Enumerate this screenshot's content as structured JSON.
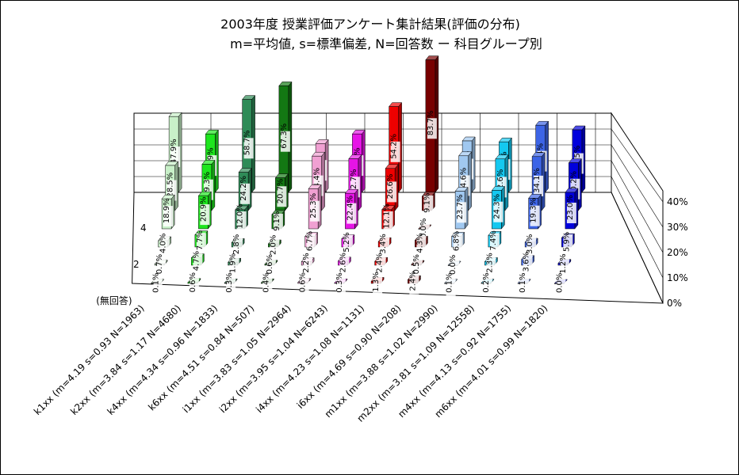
{
  "chart_data": {
    "type": "bar",
    "title": "2003年度 授業評価アンケート集計結果(評価の分布)",
    "subtitle": "m=平均値, s=標準偏差, N=回答数 ー 科目グループ別",
    "series_labels": [
      "(無回答)",
      "",
      "2",
      "",
      "4",
      ""
    ],
    "vertical_ticks": [
      "0%",
      "10%",
      "20%",
      "30%",
      "40%"
    ],
    "ylim": [
      0,
      50
    ],
    "categories": [
      {
        "name": "k1xx (m=4.19 s=0.93 N=1963)",
        "values": [
          0.1,
          0.7,
          4.0,
          18.9,
          28.5,
          47.9
        ],
        "color": "#c8f0c8"
      },
      {
        "name": "k2xx (m=3.84 s=1.17 N=4680)",
        "values": [
          0.6,
          4.7,
          7.7,
          20.9,
          29.3,
          36.9
        ],
        "color": "#1ee61e"
      },
      {
        "name": "k4xx (m=4.34 s=0.96 N=1833)",
        "values": [
          0.3,
          1.9,
          2.8,
          12.0,
          24.2,
          58.7
        ],
        "color": "#2e8b57"
      },
      {
        "name": "k6xx (m=4.51 s=0.84 N=507)",
        "values": [
          0.4,
          0.6,
          2.0,
          9.1,
          20.7,
          67.3
        ],
        "color": "#137813"
      },
      {
        "name": "i1xx (m=3.83 s=1.05 N=2964)",
        "values": [
          0.6,
          2.2,
          6.7,
          25.3,
          34.4,
          30.8
        ],
        "color": "#f0a0d2"
      },
      {
        "name": "i2xx (m=3.95 s=1.04 N=6243)",
        "values": [
          0.3,
          2.6,
          5.2,
          22.4,
          32.7,
          36.9
        ],
        "color": "#e614e6"
      },
      {
        "name": "i4xx (m=4.23 s=1.08 N=1131)",
        "values": [
          1.3,
          2.4,
          3.4,
          12.1,
          26.6,
          54.2
        ],
        "color": "#ee0000"
      },
      {
        "name": "i6xx (m=4.69 s=0.90 N=208)",
        "values": [
          2.4,
          0.5,
          4.3,
          0.0,
          9.1,
          83.7
        ],
        "color": "#780000"
      },
      {
        "name": "m1xx (m=3.88 s=1.02 N=2990)",
        "values": [
          0.1,
          0.0,
          6.8,
          23.7,
          34.6,
          32.5
        ],
        "color": "#a0c8f0"
      },
      {
        "name": "m2xx (m=3.81 s=1.09 N=12558)",
        "values": [
          0.2,
          2.3,
          7.4,
          24.3,
          32.6,
          31.9
        ],
        "color": "#14c8f0"
      },
      {
        "name": "m4xx (m=4.13 s=0.92 N=1755)",
        "values": [
          0.1,
          3.6,
          3.0,
          19.3,
          34.1,
          42.4
        ],
        "color": "#3c64e6"
      },
      {
        "name": "m6xx (m=4.01 s=0.99 N=1820)",
        "values": [
          0.0,
          1.2,
          5.9,
          23.0,
          30.2,
          39.5
        ],
        "color": "#0000dc"
      }
    ],
    "grid": true,
    "legend": "none"
  }
}
